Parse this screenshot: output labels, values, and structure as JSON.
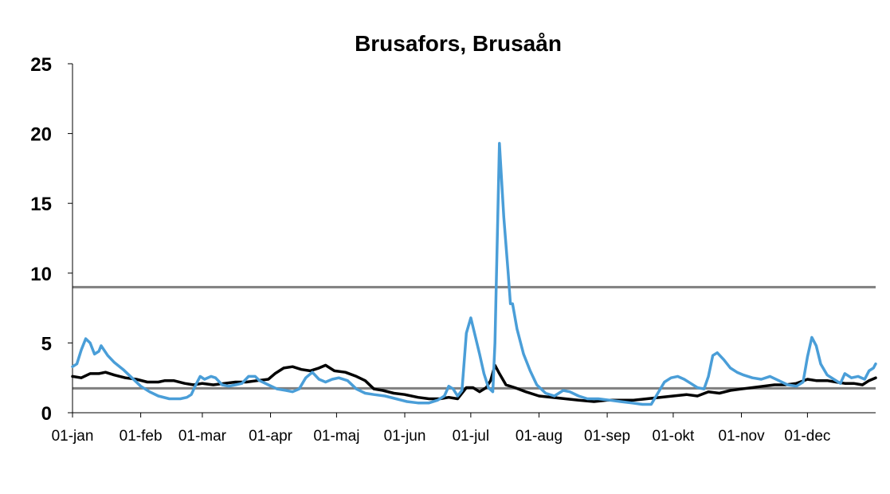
{
  "chart_data": {
    "type": "line",
    "title": "Brusafors, Brusaån",
    "xlabel": "",
    "ylabel": "",
    "ylim": [
      0,
      25
    ],
    "y_ticks": [
      "0",
      "5",
      "10",
      "15",
      "20",
      "25"
    ],
    "x_tick_labels": [
      "01-jan",
      "01-feb",
      "01-mar",
      "01-apr",
      "01-maj",
      "01-jun",
      "01-jul",
      "01-aug",
      "01-sep",
      "01-okt",
      "01-nov",
      "01-dec"
    ],
    "x_tick_days": [
      1,
      32,
      60,
      91,
      121,
      152,
      182,
      213,
      244,
      274,
      305,
      335
    ],
    "x_range_days": [
      1,
      366
    ],
    "grid": false,
    "legend": "none",
    "series": [
      {
        "color": "#000000",
        "points": [
          [
            1,
            2.6
          ],
          [
            5,
            2.5
          ],
          [
            9,
            2.8
          ],
          [
            13,
            2.8
          ],
          [
            16,
            2.9
          ],
          [
            20,
            2.7
          ],
          [
            25,
            2.5
          ],
          [
            30,
            2.4
          ],
          [
            35,
            2.2
          ],
          [
            40,
            2.2
          ],
          [
            43,
            2.3
          ],
          [
            47,
            2.3
          ],
          [
            52,
            2.1
          ],
          [
            56,
            2.0
          ],
          [
            60,
            2.1
          ],
          [
            65,
            2.0
          ],
          [
            70,
            2.1
          ],
          [
            75,
            2.2
          ],
          [
            80,
            2.2
          ],
          [
            85,
            2.3
          ],
          [
            90,
            2.4
          ],
          [
            93,
            2.8
          ],
          [
            97,
            3.2
          ],
          [
            101,
            3.3
          ],
          [
            105,
            3.1
          ],
          [
            109,
            3.0
          ],
          [
            113,
            3.2
          ],
          [
            116,
            3.4
          ],
          [
            120,
            3.0
          ],
          [
            125,
            2.9
          ],
          [
            130,
            2.6
          ],
          [
            134,
            2.3
          ],
          [
            138,
            1.7
          ],
          [
            142,
            1.6
          ],
          [
            147,
            1.4
          ],
          [
            152,
            1.3
          ],
          [
            158,
            1.1
          ],
          [
            163,
            1.0
          ],
          [
            168,
            1.0
          ],
          [
            172,
            1.1
          ],
          [
            176,
            1.0
          ],
          [
            180,
            1.8
          ],
          [
            183,
            1.8
          ],
          [
            186,
            1.5
          ],
          [
            189,
            1.8
          ],
          [
            191,
            2.3
          ],
          [
            193,
            3.4
          ],
          [
            195,
            2.8
          ],
          [
            198,
            2.0
          ],
          [
            202,
            1.8
          ],
          [
            207,
            1.5
          ],
          [
            213,
            1.2
          ],
          [
            219,
            1.1
          ],
          [
            225,
            1.0
          ],
          [
            231,
            0.9
          ],
          [
            238,
            0.8
          ],
          [
            244,
            0.9
          ],
          [
            250,
            0.9
          ],
          [
            256,
            0.9
          ],
          [
            262,
            1.0
          ],
          [
            268,
            1.1
          ],
          [
            274,
            1.2
          ],
          [
            280,
            1.3
          ],
          [
            285,
            1.2
          ],
          [
            290,
            1.5
          ],
          [
            295,
            1.4
          ],
          [
            300,
            1.6
          ],
          [
            305,
            1.7
          ],
          [
            310,
            1.8
          ],
          [
            315,
            1.9
          ],
          [
            320,
            2.0
          ],
          [
            325,
            2.0
          ],
          [
            330,
            2.1
          ],
          [
            335,
            2.4
          ],
          [
            339,
            2.3
          ],
          [
            344,
            2.3
          ],
          [
            348,
            2.2
          ],
          [
            352,
            2.1
          ],
          [
            356,
            2.1
          ],
          [
            360,
            2.0
          ],
          [
            363,
            2.3
          ],
          [
            366,
            2.5
          ]
        ]
      },
      {
        "color": "#4a9ed8",
        "points": [
          [
            1,
            3.3
          ],
          [
            3,
            3.5
          ],
          [
            5,
            4.5
          ],
          [
            7,
            5.3
          ],
          [
            9,
            5.0
          ],
          [
            11,
            4.2
          ],
          [
            13,
            4.4
          ],
          [
            14,
            4.8
          ],
          [
            17,
            4.1
          ],
          [
            20,
            3.6
          ],
          [
            24,
            3.1
          ],
          [
            28,
            2.5
          ],
          [
            32,
            1.9
          ],
          [
            36,
            1.5
          ],
          [
            40,
            1.2
          ],
          [
            45,
            1.0
          ],
          [
            50,
            1.0
          ],
          [
            53,
            1.1
          ],
          [
            55,
            1.3
          ],
          [
            57,
            2.0
          ],
          [
            59,
            2.6
          ],
          [
            61,
            2.4
          ],
          [
            64,
            2.6
          ],
          [
            66,
            2.5
          ],
          [
            69,
            2.0
          ],
          [
            72,
            1.9
          ],
          [
            75,
            2.0
          ],
          [
            78,
            2.1
          ],
          [
            81,
            2.6
          ],
          [
            84,
            2.6
          ],
          [
            86,
            2.3
          ],
          [
            90,
            2.0
          ],
          [
            94,
            1.7
          ],
          [
            98,
            1.6
          ],
          [
            101,
            1.5
          ],
          [
            104,
            1.7
          ],
          [
            107,
            2.5
          ],
          [
            110,
            2.9
          ],
          [
            113,
            2.4
          ],
          [
            116,
            2.2
          ],
          [
            119,
            2.4
          ],
          [
            122,
            2.5
          ],
          [
            126,
            2.3
          ],
          [
            130,
            1.7
          ],
          [
            134,
            1.4
          ],
          [
            138,
            1.3
          ],
          [
            143,
            1.2
          ],
          [
            148,
            1.0
          ],
          [
            153,
            0.8
          ],
          [
            158,
            0.7
          ],
          [
            163,
            0.7
          ],
          [
            167,
            0.9
          ],
          [
            170,
            1.2
          ],
          [
            172,
            1.9
          ],
          [
            174,
            1.7
          ],
          [
            176,
            1.2
          ],
          [
            178,
            1.6
          ],
          [
            180,
            5.7
          ],
          [
            182,
            6.8
          ],
          [
            184,
            5.5
          ],
          [
            186,
            4.2
          ],
          [
            188,
            2.8
          ],
          [
            190,
            1.8
          ],
          [
            192,
            1.5
          ],
          [
            193,
            5.0
          ],
          [
            195,
            19.3
          ],
          [
            197,
            14.0
          ],
          [
            199,
            10.0
          ],
          [
            200,
            7.8
          ],
          [
            201,
            7.8
          ],
          [
            203,
            6.0
          ],
          [
            206,
            4.2
          ],
          [
            209,
            3.0
          ],
          [
            212,
            2.0
          ],
          [
            216,
            1.4
          ],
          [
            220,
            1.2
          ],
          [
            224,
            1.6
          ],
          [
            227,
            1.5
          ],
          [
            231,
            1.2
          ],
          [
            235,
            1.0
          ],
          [
            240,
            1.0
          ],
          [
            245,
            0.9
          ],
          [
            250,
            0.8
          ],
          [
            255,
            0.7
          ],
          [
            260,
            0.6
          ],
          [
            264,
            0.6
          ],
          [
            267,
            1.4
          ],
          [
            270,
            2.2
          ],
          [
            273,
            2.5
          ],
          [
            276,
            2.6
          ],
          [
            279,
            2.4
          ],
          [
            282,
            2.1
          ],
          [
            285,
            1.8
          ],
          [
            288,
            1.7
          ],
          [
            290,
            2.6
          ],
          [
            292,
            4.1
          ],
          [
            294,
            4.3
          ],
          [
            297,
            3.8
          ],
          [
            300,
            3.2
          ],
          [
            303,
            2.9
          ],
          [
            306,
            2.7
          ],
          [
            310,
            2.5
          ],
          [
            314,
            2.4
          ],
          [
            318,
            2.6
          ],
          [
            322,
            2.3
          ],
          [
            326,
            2.0
          ],
          [
            330,
            1.9
          ],
          [
            333,
            2.2
          ],
          [
            335,
            4.0
          ],
          [
            337,
            5.4
          ],
          [
            339,
            4.8
          ],
          [
            341,
            3.5
          ],
          [
            344,
            2.7
          ],
          [
            347,
            2.4
          ],
          [
            350,
            2.1
          ],
          [
            352,
            2.8
          ],
          [
            355,
            2.5
          ],
          [
            358,
            2.6
          ],
          [
            361,
            2.4
          ],
          [
            363,
            3.0
          ],
          [
            365,
            3.2
          ],
          [
            366,
            3.5
          ]
        ]
      }
    ],
    "reference_lines": [
      {
        "y": 9.0,
        "color": "#7f7f7f"
      },
      {
        "y": 1.75,
        "color": "#7f7f7f"
      }
    ]
  }
}
